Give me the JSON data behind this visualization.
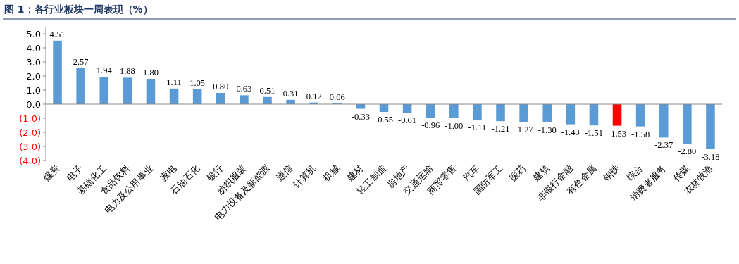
{
  "chart_data": {
    "type": "bar",
    "title": "图 1：各行业板块一周表现（%）",
    "categories": [
      "煤炭",
      "电子",
      "基础化工",
      "食品饮料",
      "电力及公用事业",
      "家电",
      "石油石化",
      "银行",
      "纺织服装",
      "电力设备及新能源",
      "通信",
      "计算机",
      "机械",
      "建材",
      "轻工制造",
      "房地产",
      "交通运输",
      "商贸零售",
      "汽车",
      "国防军工",
      "医药",
      "建筑",
      "非银行金融",
      "有色金属",
      "钢铁",
      "综合",
      "消费者服务",
      "传媒",
      "农林牧渔"
    ],
    "values": [
      4.51,
      2.57,
      1.94,
      1.88,
      1.8,
      1.11,
      1.05,
      0.8,
      0.63,
      0.51,
      0.31,
      0.12,
      0.06,
      -0.33,
      -0.55,
      -0.61,
      -0.96,
      -1.0,
      -1.11,
      -1.21,
      -1.27,
      -1.3,
      -1.43,
      -1.51,
      -1.53,
      -1.58,
      -2.37,
      -2.8,
      -3.18
    ],
    "value_labels": [
      "4.51",
      "2.57",
      "1.94",
      "1.88",
      "1.80",
      "1.11",
      "1.05",
      "0.80",
      "0.63",
      "0.51",
      "0.31",
      "0.12",
      "0.06",
      "-0.33",
      "-0.55",
      "-0.61",
      "-0.96",
      "-1.00",
      "-1.11",
      "-1.21",
      "-1.27",
      "-1.30",
      "-1.43",
      "-1.51",
      "-1.53",
      "-1.58",
      "-2.37",
      "-2.80",
      "-3.18"
    ],
    "colors": [
      "#5b9bd5",
      "#5b9bd5",
      "#5b9bd5",
      "#5b9bd5",
      "#5b9bd5",
      "#5b9bd5",
      "#5b9bd5",
      "#5b9bd5",
      "#5b9bd5",
      "#5b9bd5",
      "#5b9bd5",
      "#5b9bd5",
      "#5b9bd5",
      "#5b9bd5",
      "#5b9bd5",
      "#5b9bd5",
      "#5b9bd5",
      "#5b9bd5",
      "#5b9bd5",
      "#5b9bd5",
      "#5b9bd5",
      "#5b9bd5",
      "#5b9bd5",
      "#5b9bd5",
      "#ff0000",
      "#5b9bd5",
      "#5b9bd5",
      "#5b9bd5",
      "#5b9bd5"
    ],
    "ylim": [
      -4,
      5.5
    ],
    "yticks": [
      {
        "value": 5,
        "label": "5.0"
      },
      {
        "value": 4,
        "label": "4.0"
      },
      {
        "value": 3,
        "label": "3.0"
      },
      {
        "value": 2,
        "label": "2.0"
      },
      {
        "value": 1,
        "label": "1.0"
      },
      {
        "value": 0,
        "label": "0.0"
      },
      {
        "value": -1,
        "label": "(1.0)"
      },
      {
        "value": -2,
        "label": "(2.0)"
      },
      {
        "value": -3,
        "label": "(3.0)"
      },
      {
        "value": -4,
        "label": "(4.0)"
      }
    ]
  }
}
